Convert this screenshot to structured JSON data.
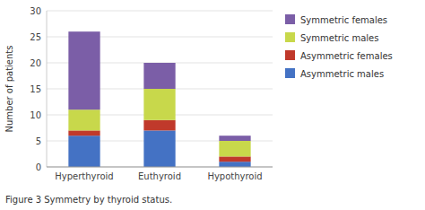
{
  "chart_data": {
    "type": "bar",
    "stacked": true,
    "categories": [
      "Hyperthyroid",
      "Euthyroid",
      "Hypothyroid"
    ],
    "series": [
      {
        "name": "Asymmetric males",
        "color": "#4472c4",
        "values": [
          6,
          7,
          1
        ]
      },
      {
        "name": "Asymmetric females",
        "color": "#c0392b",
        "values": [
          1,
          2,
          1
        ]
      },
      {
        "name": "Symmetric males",
        "color": "#c8d84b",
        "values": [
          4,
          6,
          3
        ]
      },
      {
        "name": "Symmetric females",
        "color": "#7b5ea7",
        "values": [
          15,
          5,
          1
        ]
      }
    ],
    "ylabel": "Number of patients",
    "ylim": [
      0,
      30
    ],
    "yticks": [
      0,
      5,
      10,
      15,
      20,
      25,
      30
    ],
    "grid": true,
    "legend": "right",
    "caption": "Figure 3 Symmetry by thyroid status."
  }
}
